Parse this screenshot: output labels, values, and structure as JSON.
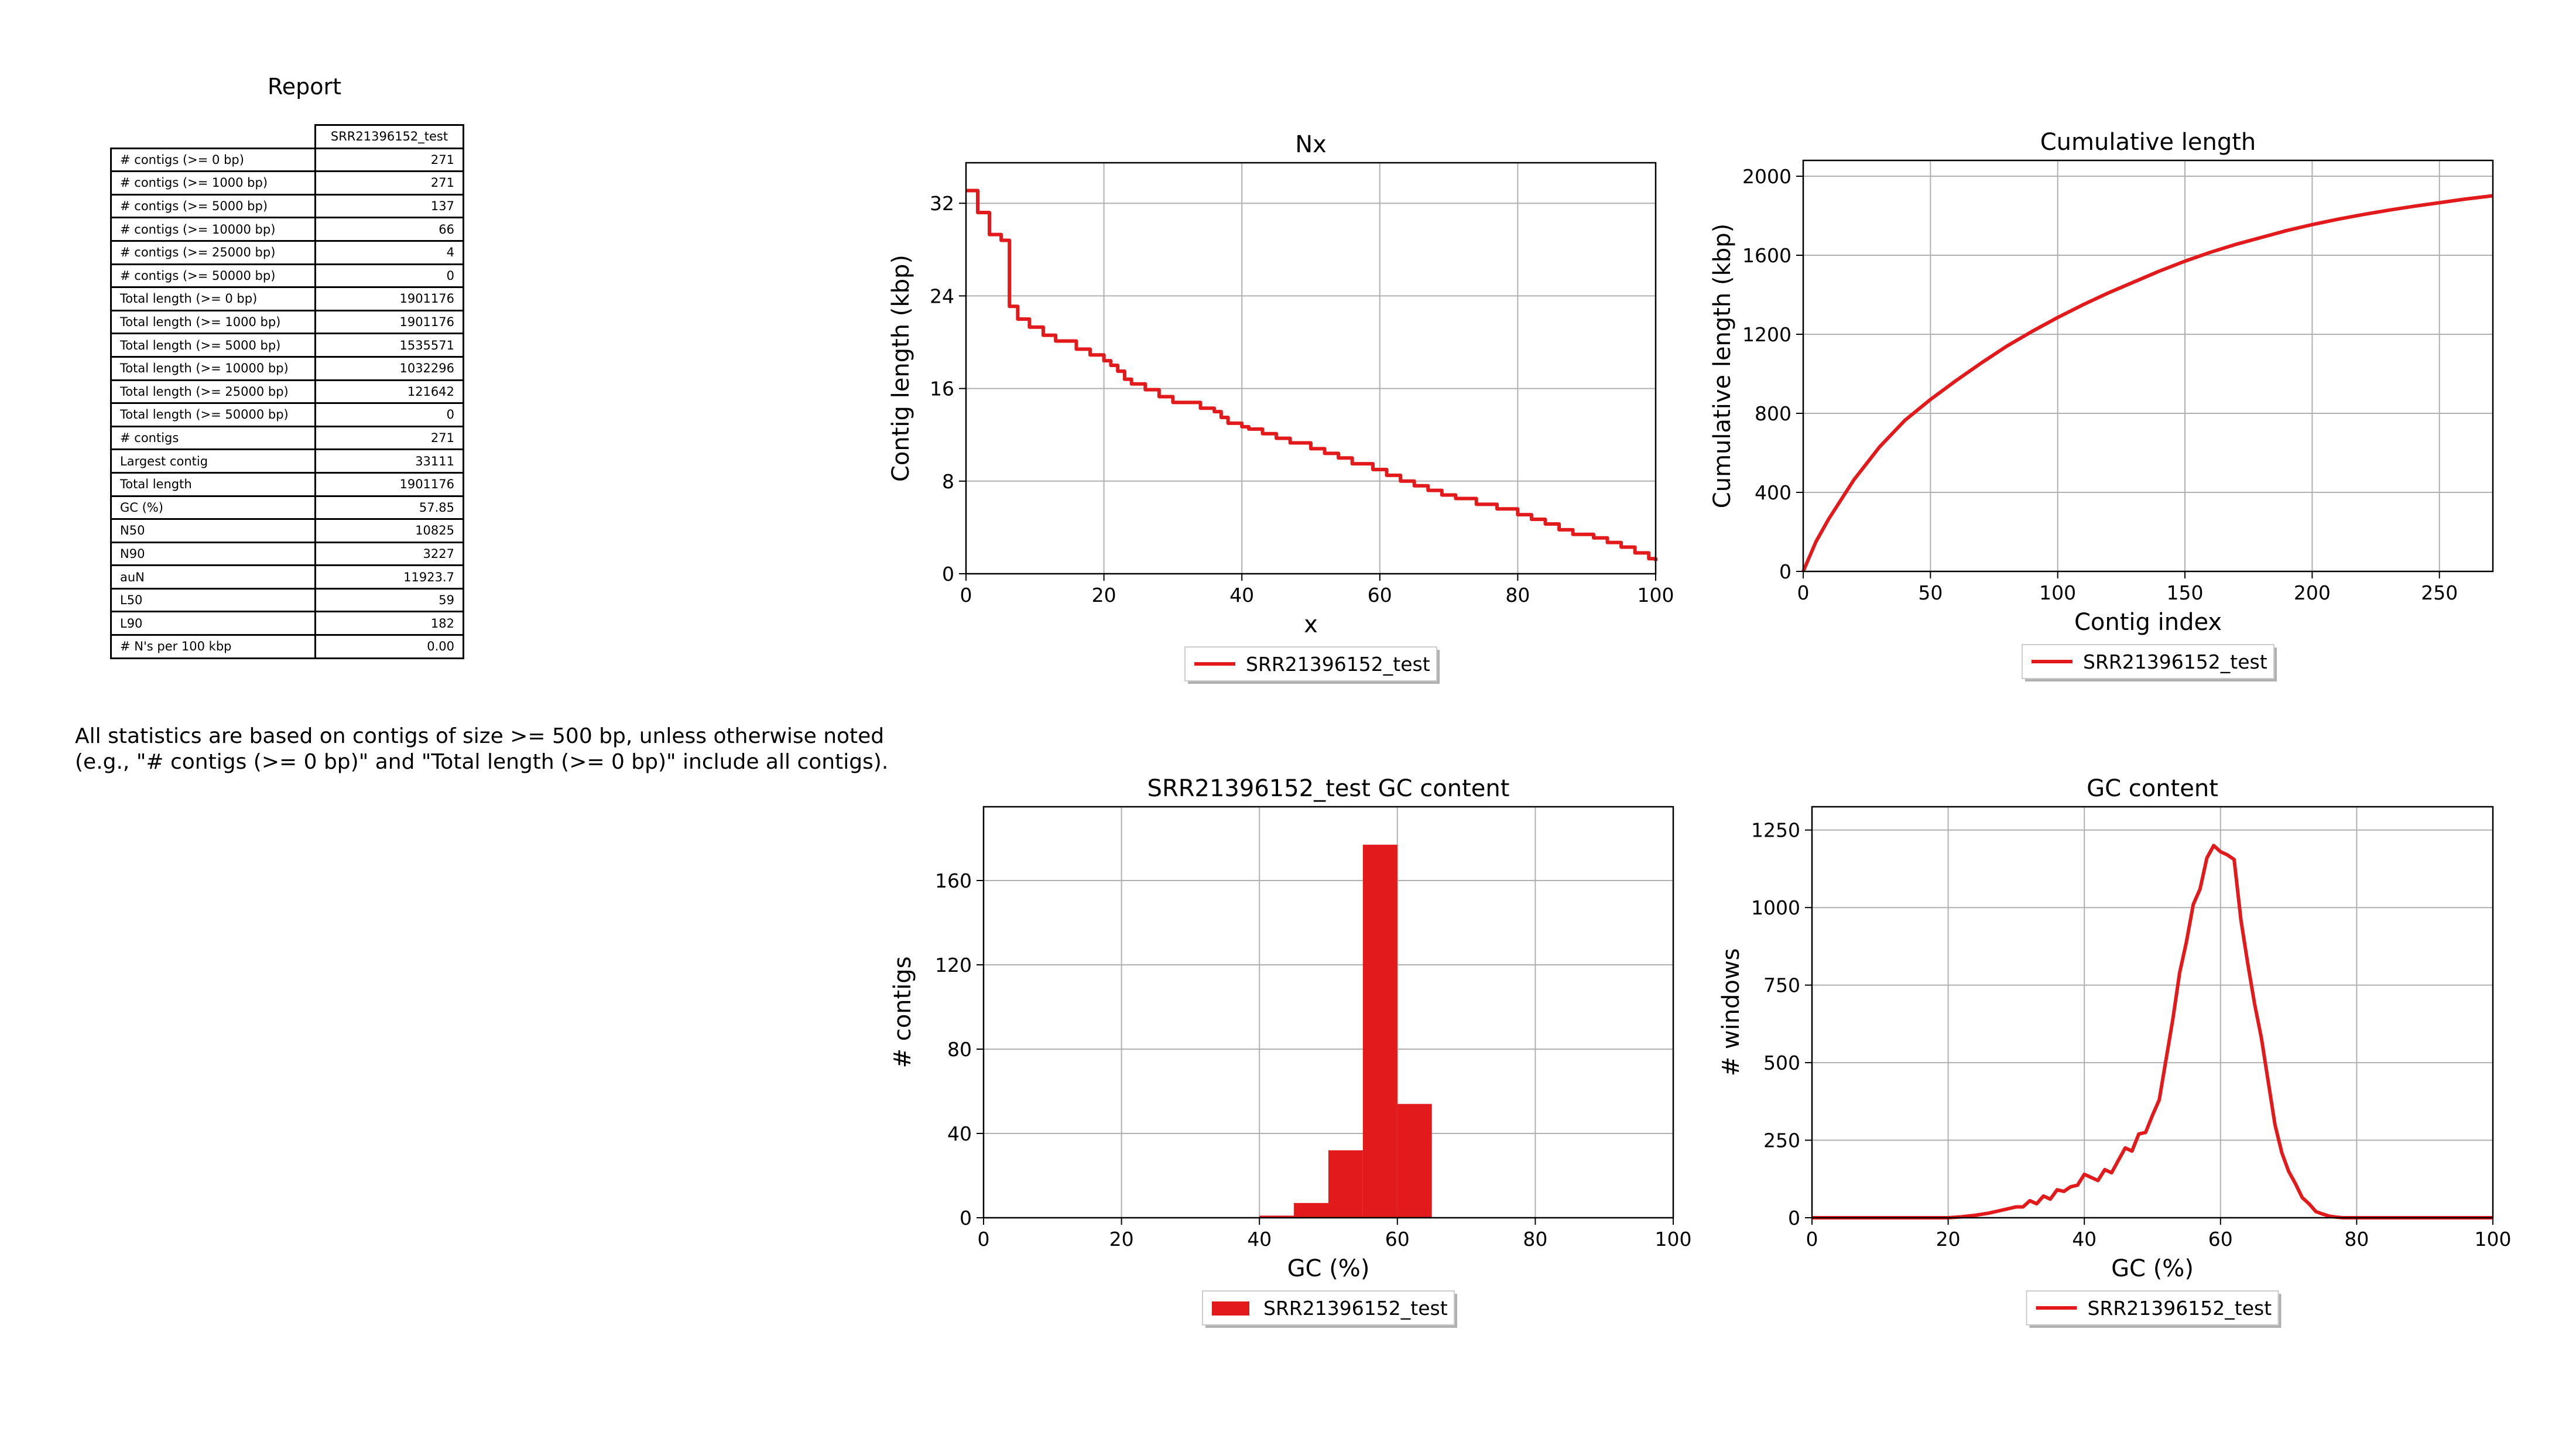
{
  "report": {
    "title": "Report",
    "column_header": "SRR21396152_test",
    "rows": [
      {
        "label": "# contigs (>= 0 bp)",
        "value": "271"
      },
      {
        "label": "# contigs (>= 1000 bp)",
        "value": "271"
      },
      {
        "label": "# contigs (>= 5000 bp)",
        "value": "137"
      },
      {
        "label": "# contigs (>= 10000 bp)",
        "value": "66"
      },
      {
        "label": "# contigs (>= 25000 bp)",
        "value": "4"
      },
      {
        "label": "# contigs (>= 50000 bp)",
        "value": "0"
      },
      {
        "label": "Total length (>= 0 bp)",
        "value": "1901176"
      },
      {
        "label": "Total length (>= 1000 bp)",
        "value": "1901176"
      },
      {
        "label": "Total length (>= 5000 bp)",
        "value": "1535571"
      },
      {
        "label": "Total length (>= 10000 bp)",
        "value": "1032296"
      },
      {
        "label": "Total length (>= 25000 bp)",
        "value": "121642"
      },
      {
        "label": "Total length (>= 50000 bp)",
        "value": "0"
      },
      {
        "label": "# contigs",
        "value": "271"
      },
      {
        "label": "Largest contig",
        "value": "33111"
      },
      {
        "label": "Total length",
        "value": "1901176"
      },
      {
        "label": "GC (%)",
        "value": "57.85"
      },
      {
        "label": "N50",
        "value": "10825"
      },
      {
        "label": "N90",
        "value": "3227"
      },
      {
        "label": "auN",
        "value": "11923.7"
      },
      {
        "label": "L50",
        "value": "59"
      },
      {
        "label": "L90",
        "value": "182"
      },
      {
        "label": "# N's per 100 kbp",
        "value": "0.00"
      }
    ],
    "note_line1": "All statistics are based on contigs of size >= 500 bp, unless otherwise noted",
    "note_line2": "(e.g., \"# contigs (>= 0 bp)\" and \"Total length (>= 0 bp)\" include all contigs)."
  },
  "colors": {
    "series": "#e31a1c",
    "grid": "#b0b0b0",
    "axis": "#000000",
    "legend_border": "#cccccc"
  },
  "chart_data": [
    {
      "id": "nx",
      "type": "line",
      "title": "Nx",
      "xlabel": "x",
      "ylabel": "Contig length (kbp)",
      "xlim": [
        0,
        100
      ],
      "ylim": [
        0,
        35.5
      ],
      "xticks": [
        0,
        20,
        40,
        60,
        80,
        100
      ],
      "yticks": [
        0,
        8,
        16,
        24,
        32
      ],
      "grid": true,
      "legend": "below",
      "step": true,
      "series": [
        {
          "name": "SRR21396152_test",
          "x": [
            0,
            1.7,
            3.4,
            5.1,
            6.3,
            7.5,
            9.2,
            11.2,
            13,
            16,
            18,
            20,
            21,
            22,
            23,
            24,
            26,
            28,
            30,
            34,
            36,
            37,
            38,
            40,
            41,
            43,
            45,
            47,
            50,
            52,
            54,
            56,
            59,
            61,
            63,
            65,
            67,
            69,
            71,
            74,
            77,
            80,
            82,
            84,
            86,
            88,
            91,
            93,
            95,
            97,
            99,
            100
          ],
          "y": [
            33.1,
            31.2,
            29.3,
            28.8,
            23.1,
            22.0,
            21.3,
            20.6,
            20.1,
            19.4,
            18.9,
            18.4,
            18.0,
            17.5,
            16.8,
            16.4,
            15.9,
            15.3,
            14.8,
            14.3,
            14.0,
            13.5,
            13.0,
            12.7,
            12.5,
            12.1,
            11.7,
            11.3,
            10.8,
            10.4,
            10.0,
            9.5,
            9.0,
            8.5,
            8.0,
            7.6,
            7.2,
            6.8,
            6.5,
            6.0,
            5.6,
            5.1,
            4.7,
            4.3,
            3.8,
            3.4,
            3.1,
            2.7,
            2.3,
            1.8,
            1.3,
            1.1
          ]
        }
      ]
    },
    {
      "id": "cumulative",
      "type": "line",
      "title": "Cumulative length",
      "xlabel": "Contig index",
      "ylabel": "Cumulative length (kbp)",
      "xlim": [
        0,
        271
      ],
      "ylim": [
        0,
        2080
      ],
      "xticks": [
        0,
        50,
        100,
        150,
        200,
        250
      ],
      "yticks": [
        0,
        400,
        800,
        1200,
        1600,
        2000
      ],
      "grid": true,
      "legend": "below",
      "series": [
        {
          "name": "SRR21396152_test",
          "x": [
            0,
            5,
            10,
            20,
            30,
            40,
            50,
            60,
            70,
            80,
            90,
            100,
            110,
            120,
            130,
            140,
            150,
            160,
            170,
            180,
            190,
            200,
            210,
            220,
            230,
            240,
            250,
            260,
            271
          ],
          "y": [
            0,
            150,
            265,
            465,
            630,
            765,
            870,
            965,
            1055,
            1140,
            1215,
            1285,
            1350,
            1410,
            1465,
            1520,
            1570,
            1615,
            1655,
            1690,
            1725,
            1755,
            1782,
            1806,
            1828,
            1848,
            1866,
            1884,
            1901
          ]
        }
      ]
    },
    {
      "id": "gc-histogram",
      "type": "bar",
      "title": "SRR21396152_test GC content",
      "xlabel": "GC (%)",
      "ylabel": "# contigs",
      "xlim": [
        0,
        100
      ],
      "ylim": [
        0,
        195
      ],
      "xticks": [
        0,
        20,
        40,
        60,
        80,
        100
      ],
      "yticks": [
        0,
        40,
        80,
        120,
        160
      ],
      "grid": true,
      "legend": "below",
      "bin_width": 5,
      "series": [
        {
          "name": "SRR21396152_test",
          "bin_start": [
            40,
            45,
            50,
            55,
            60
          ],
          "values": [
            1,
            7,
            32,
            177,
            54
          ]
        }
      ]
    },
    {
      "id": "gc-windows",
      "type": "line",
      "title": "GC content",
      "xlabel": "GC (%)",
      "ylabel": "# windows",
      "xlim": [
        0,
        100
      ],
      "ylim": [
        0,
        1325
      ],
      "xticks": [
        0,
        20,
        40,
        60,
        80,
        100
      ],
      "yticks": [
        0,
        250,
        500,
        750,
        1000,
        1250
      ],
      "grid": true,
      "legend": "below",
      "series": [
        {
          "name": "SRR21396152_test",
          "x": [
            0,
            20,
            22,
            24,
            26,
            28,
            30,
            31,
            32,
            33,
            34,
            35,
            36,
            37,
            38,
            39,
            40,
            41,
            42,
            43,
            44,
            45,
            46,
            47,
            48,
            49,
            50,
            51,
            52,
            53,
            54,
            55,
            56,
            57,
            58,
            59,
            60,
            61,
            62,
            63,
            64,
            65,
            66,
            67,
            68,
            69,
            70,
            71,
            72,
            73,
            74,
            75,
            76,
            77,
            78,
            80,
            100
          ],
          "y": [
            0,
            0,
            3,
            8,
            15,
            25,
            35,
            35,
            55,
            45,
            70,
            60,
            90,
            85,
            100,
            105,
            140,
            130,
            120,
            155,
            145,
            185,
            225,
            215,
            270,
            275,
            330,
            380,
            510,
            640,
            790,
            890,
            1010,
            1060,
            1160,
            1200,
            1180,
            1170,
            1155,
            960,
            820,
            690,
            580,
            440,
            300,
            210,
            150,
            110,
            65,
            45,
            20,
            12,
            5,
            2,
            0,
            0,
            0
          ]
        }
      ]
    }
  ]
}
